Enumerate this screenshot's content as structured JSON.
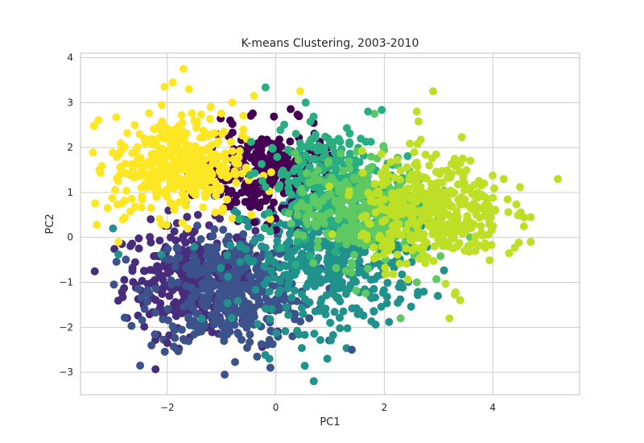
{
  "chart_data": {
    "type": "scatter",
    "title": "K-means Clustering, 2003-2010",
    "xlabel": "PC1",
    "ylabel": "PC2",
    "xlim": [
      -3.6,
      5.6
    ],
    "ylim": [
      -3.5,
      4.1
    ],
    "xticks": [
      -2,
      0,
      2,
      4
    ],
    "xtick_labels": [
      "−2",
      "0",
      "2",
      "4"
    ],
    "yticks": [
      -3,
      -2,
      -1,
      0,
      1,
      2,
      3,
      4
    ],
    "ytick_labels": [
      "−3",
      "−2",
      "−1",
      "0",
      "1",
      "2",
      "3",
      "4"
    ],
    "grid": true,
    "background": "#ffffff",
    "grid_color": "#cccccc",
    "clusters": [
      {
        "color": "#fde725",
        "center": [
          -1.8,
          1.6
        ]
      },
      {
        "color": "#440154",
        "center": [
          -0.2,
          1.4
        ]
      },
      {
        "color": "#21918c",
        "center": [
          0.9,
          -0.5
        ]
      },
      {
        "color": "#3b528b",
        "center": [
          -0.8,
          -1.2
        ]
      },
      {
        "color": "#472d7b",
        "center": [
          -1.6,
          -0.9
        ]
      },
      {
        "color": "#28ae80",
        "center": [
          1.0,
          1.2
        ]
      },
      {
        "color": "#5ec962",
        "center": [
          1.6,
          0.6
        ]
      },
      {
        "color": "#bddf26",
        "center": [
          2.9,
          0.6
        ]
      }
    ],
    "points": [
      {
        "x": -3.3,
        "y": 0.28,
        "cluster": 0
      },
      {
        "x": -3.1,
        "y": 0.65,
        "cluster": 0
      },
      {
        "x": -2.9,
        "y": -0.1,
        "cluster": 0
      },
      {
        "x": -2.6,
        "y": 2.5,
        "cluster": 0
      },
      {
        "x": -2.1,
        "y": 2.95,
        "cluster": 0
      },
      {
        "x": -2.05,
        "y": 3.35,
        "cluster": 0
      },
      {
        "x": -1.9,
        "y": 3.45,
        "cluster": 0
      },
      {
        "x": -1.7,
        "y": 3.75,
        "cluster": 0
      },
      {
        "x": -1.6,
        "y": 3.3,
        "cluster": 0
      },
      {
        "x": -1.5,
        "y": 2.6,
        "cluster": 0
      },
      {
        "x": -1.2,
        "y": 2.9,
        "cluster": 0
      },
      {
        "x": -0.8,
        "y": 3.0,
        "cluster": 0
      },
      {
        "x": -0.4,
        "y": 3.15,
        "cluster": 0
      },
      {
        "x": 0.45,
        "y": 3.25,
        "cluster": 0
      },
      {
        "x": -2.4,
        "y": 1.1,
        "cluster": 0
      },
      {
        "x": -2.7,
        "y": 1.4,
        "cluster": 0
      },
      {
        "x": -2.2,
        "y": 0.9,
        "cluster": 0
      },
      {
        "x": -1.3,
        "y": 0.9,
        "cluster": 0
      },
      {
        "x": -0.6,
        "y": 2.4,
        "cluster": 0
      },
      {
        "x": -0.45,
        "y": 0.5,
        "cluster": 0
      },
      {
        "x": 0.4,
        "y": 2.73,
        "cluster": 1
      },
      {
        "x": 0.55,
        "y": 3.0,
        "cluster": 5
      },
      {
        "x": 1.7,
        "y": 2.8,
        "cluster": 5
      },
      {
        "x": 2.9,
        "y": 3.25,
        "cluster": 7
      },
      {
        "x": 2.6,
        "y": 2.8,
        "cluster": 7
      },
      {
        "x": 4.2,
        "y": 1.3,
        "cluster": 7
      },
      {
        "x": 5.2,
        "y": 1.3,
        "cluster": 7
      },
      {
        "x": 4.7,
        "y": 0.45,
        "cluster": 7
      },
      {
        "x": 4.7,
        "y": -0.1,
        "cluster": 7
      },
      {
        "x": 4.3,
        "y": -0.35,
        "cluster": 7
      },
      {
        "x": 3.2,
        "y": -1.8,
        "cluster": 7
      },
      {
        "x": 3.4,
        "y": -1.4,
        "cluster": 7
      },
      {
        "x": 2.3,
        "y": -1.8,
        "cluster": 6
      },
      {
        "x": 2.6,
        "y": -1.0,
        "cluster": 6
      },
      {
        "x": 0.7,
        "y": -3.2,
        "cluster": 2
      },
      {
        "x": 0.95,
        "y": -2.7,
        "cluster": 2
      },
      {
        "x": -0.1,
        "y": -2.9,
        "cluster": 3
      },
      {
        "x": -2.0,
        "y": -2.35,
        "cluster": 4
      },
      {
        "x": -2.9,
        "y": -0.38,
        "cluster": 2
      },
      {
        "x": -3.0,
        "y": 0.2,
        "cluster": 2
      },
      {
        "x": 1.4,
        "y": -2.5,
        "cluster": 3
      }
    ]
  }
}
